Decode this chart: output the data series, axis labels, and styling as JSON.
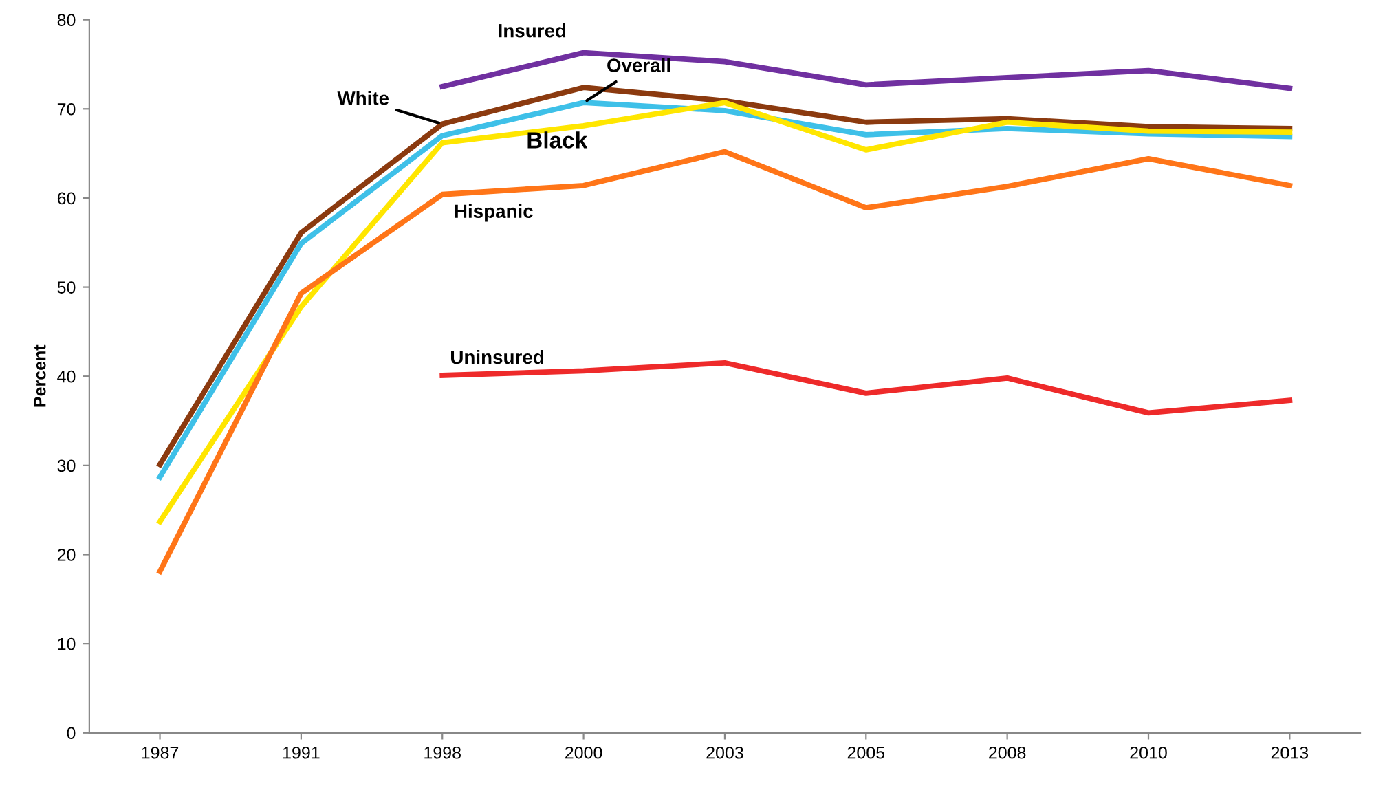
{
  "chart_data": {
    "type": "line",
    "ylabel": "Percent",
    "categories": [
      "1987",
      "1991",
      "1998",
      "2000",
      "2003",
      "2005",
      "2008",
      "2010",
      "2013"
    ],
    "series": [
      {
        "name": "Insured",
        "color": "#7030a0",
        "values": [
          null,
          null,
          72.5,
          76.3,
          75.3,
          72.7,
          73.5,
          74.3,
          72.3
        ]
      },
      {
        "name": "White",
        "color": "#8b3a0f",
        "values": [
          30.1,
          56.1,
          68.3,
          72.4,
          70.9,
          68.5,
          68.9,
          68.0,
          67.8
        ]
      },
      {
        "name": "Overall",
        "color": "#3ec0e8",
        "values": [
          28.7,
          54.9,
          67.0,
          70.7,
          69.8,
          67.1,
          67.8,
          67.2,
          66.9
        ]
      },
      {
        "name": "Black",
        "color": "#ffe600",
        "values": [
          23.7,
          47.8,
          66.2,
          68.1,
          70.7,
          65.4,
          68.5,
          67.5,
          67.4
        ]
      },
      {
        "name": "Hispanic",
        "color": "#ff7518",
        "values": [
          18.1,
          49.3,
          60.4,
          61.4,
          65.2,
          58.9,
          61.3,
          64.4,
          61.4
        ]
      },
      {
        "name": "Uninsured",
        "color": "#ee2a2a",
        "values": [
          null,
          null,
          40.1,
          40.6,
          41.5,
          38.1,
          39.8,
          35.9,
          37.3
        ]
      }
    ],
    "ylim": [
      0,
      80
    ],
    "yticks": [
      0,
      10,
      20,
      30,
      40,
      50,
      60,
      70,
      80
    ],
    "grid": false,
    "legend": false,
    "marker": "none",
    "line_style": "solid"
  }
}
